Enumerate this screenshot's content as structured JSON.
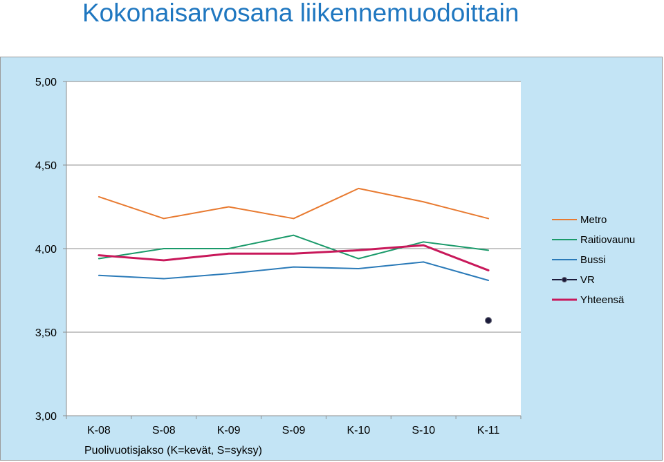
{
  "page": {
    "title": "Kokonaisarvosana liikennemuodoittain"
  },
  "chart_data": {
    "type": "line",
    "title": "Kokonaisarvosana liikennemuodoittain",
    "xlabel": "Puolivuotisjakso (K=kevät, S=syksy)",
    "ylabel": "",
    "categories": [
      "K-08",
      "S-08",
      "K-09",
      "S-09",
      "K-10",
      "S-10",
      "K-11"
    ],
    "ylim": [
      3.0,
      5.0
    ],
    "yticks": [
      "3,00",
      "3,50",
      "4,00",
      "4,50",
      "5,00"
    ],
    "ytick_values": [
      3.0,
      3.5,
      4.0,
      4.5,
      5.0
    ],
    "grid": true,
    "legend_position": "right",
    "series": [
      {
        "name": "Metro",
        "color": "#e87a30",
        "values": [
          4.31,
          4.18,
          4.25,
          4.18,
          4.36,
          4.28,
          4.18
        ],
        "marker": false
      },
      {
        "name": "Raitiovaunu",
        "color": "#1a9a6a",
        "values": [
          3.94,
          4.0,
          4.0,
          4.08,
          3.94,
          4.04,
          3.99
        ],
        "marker": false
      },
      {
        "name": "Bussi",
        "color": "#2a7ab8",
        "values": [
          3.84,
          3.82,
          3.85,
          3.89,
          3.88,
          3.92,
          3.81
        ],
        "marker": false
      },
      {
        "name": "VR",
        "color": "#1a1a3a",
        "values": [
          null,
          null,
          null,
          null,
          null,
          null,
          3.57
        ],
        "marker": true
      },
      {
        "name": "Yhteensä",
        "color": "#c8185a",
        "values": [
          3.96,
          3.93,
          3.97,
          3.97,
          3.99,
          4.02,
          3.87
        ],
        "marker": false,
        "thick": true
      }
    ]
  }
}
